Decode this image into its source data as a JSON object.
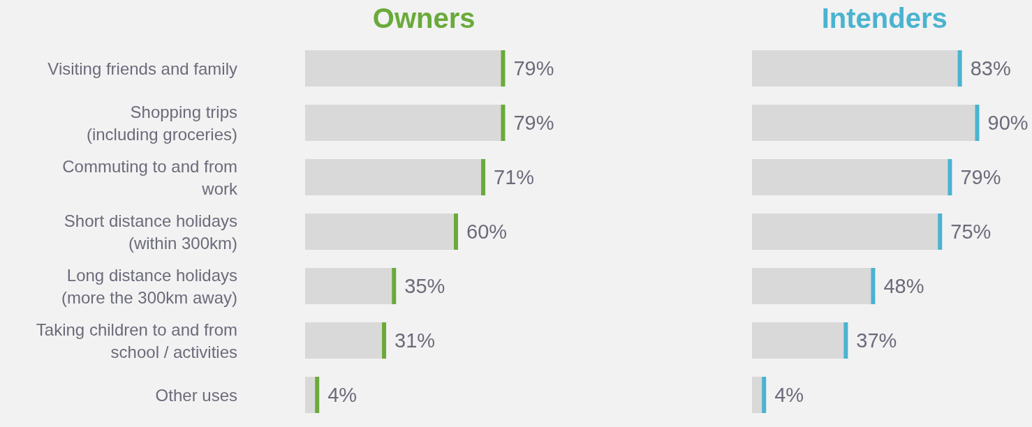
{
  "chart_data": [
    {
      "type": "bar",
      "orientation": "horizontal",
      "title": "Owners",
      "color": "#d9d9d9",
      "tick_labels": "y",
      "categories": [
        "Visiting friends and family",
        "Shopping trips\n(including groceries)",
        "Commuting to and from\nwork",
        "Short distance holidays\n(within 300km)",
        "Long distance holidays\n(more the 300km away)",
        "Taking children to and from\nschool / activities",
        "Other uses"
      ],
      "values": [
        79,
        79,
        71,
        60,
        35,
        31,
        4
      ],
      "value_labels": [
        "79%",
        "79%",
        "71%",
        "60%",
        "35%",
        "31%",
        "4%"
      ]
    },
    {
      "type": "bar",
      "orientation": "horizontal",
      "title": "Intenders",
      "color": "#d9d9d9",
      "tick_labels": false,
      "categories": [
        null,
        null,
        null,
        null,
        null,
        null,
        null
      ],
      "values": [
        83,
        90,
        79,
        75,
        48,
        37,
        4
      ],
      "value_labels": [
        "83%",
        "90%",
        "79%",
        "75%",
        "48%",
        "37%",
        "4%"
      ]
    }
  ]
}
